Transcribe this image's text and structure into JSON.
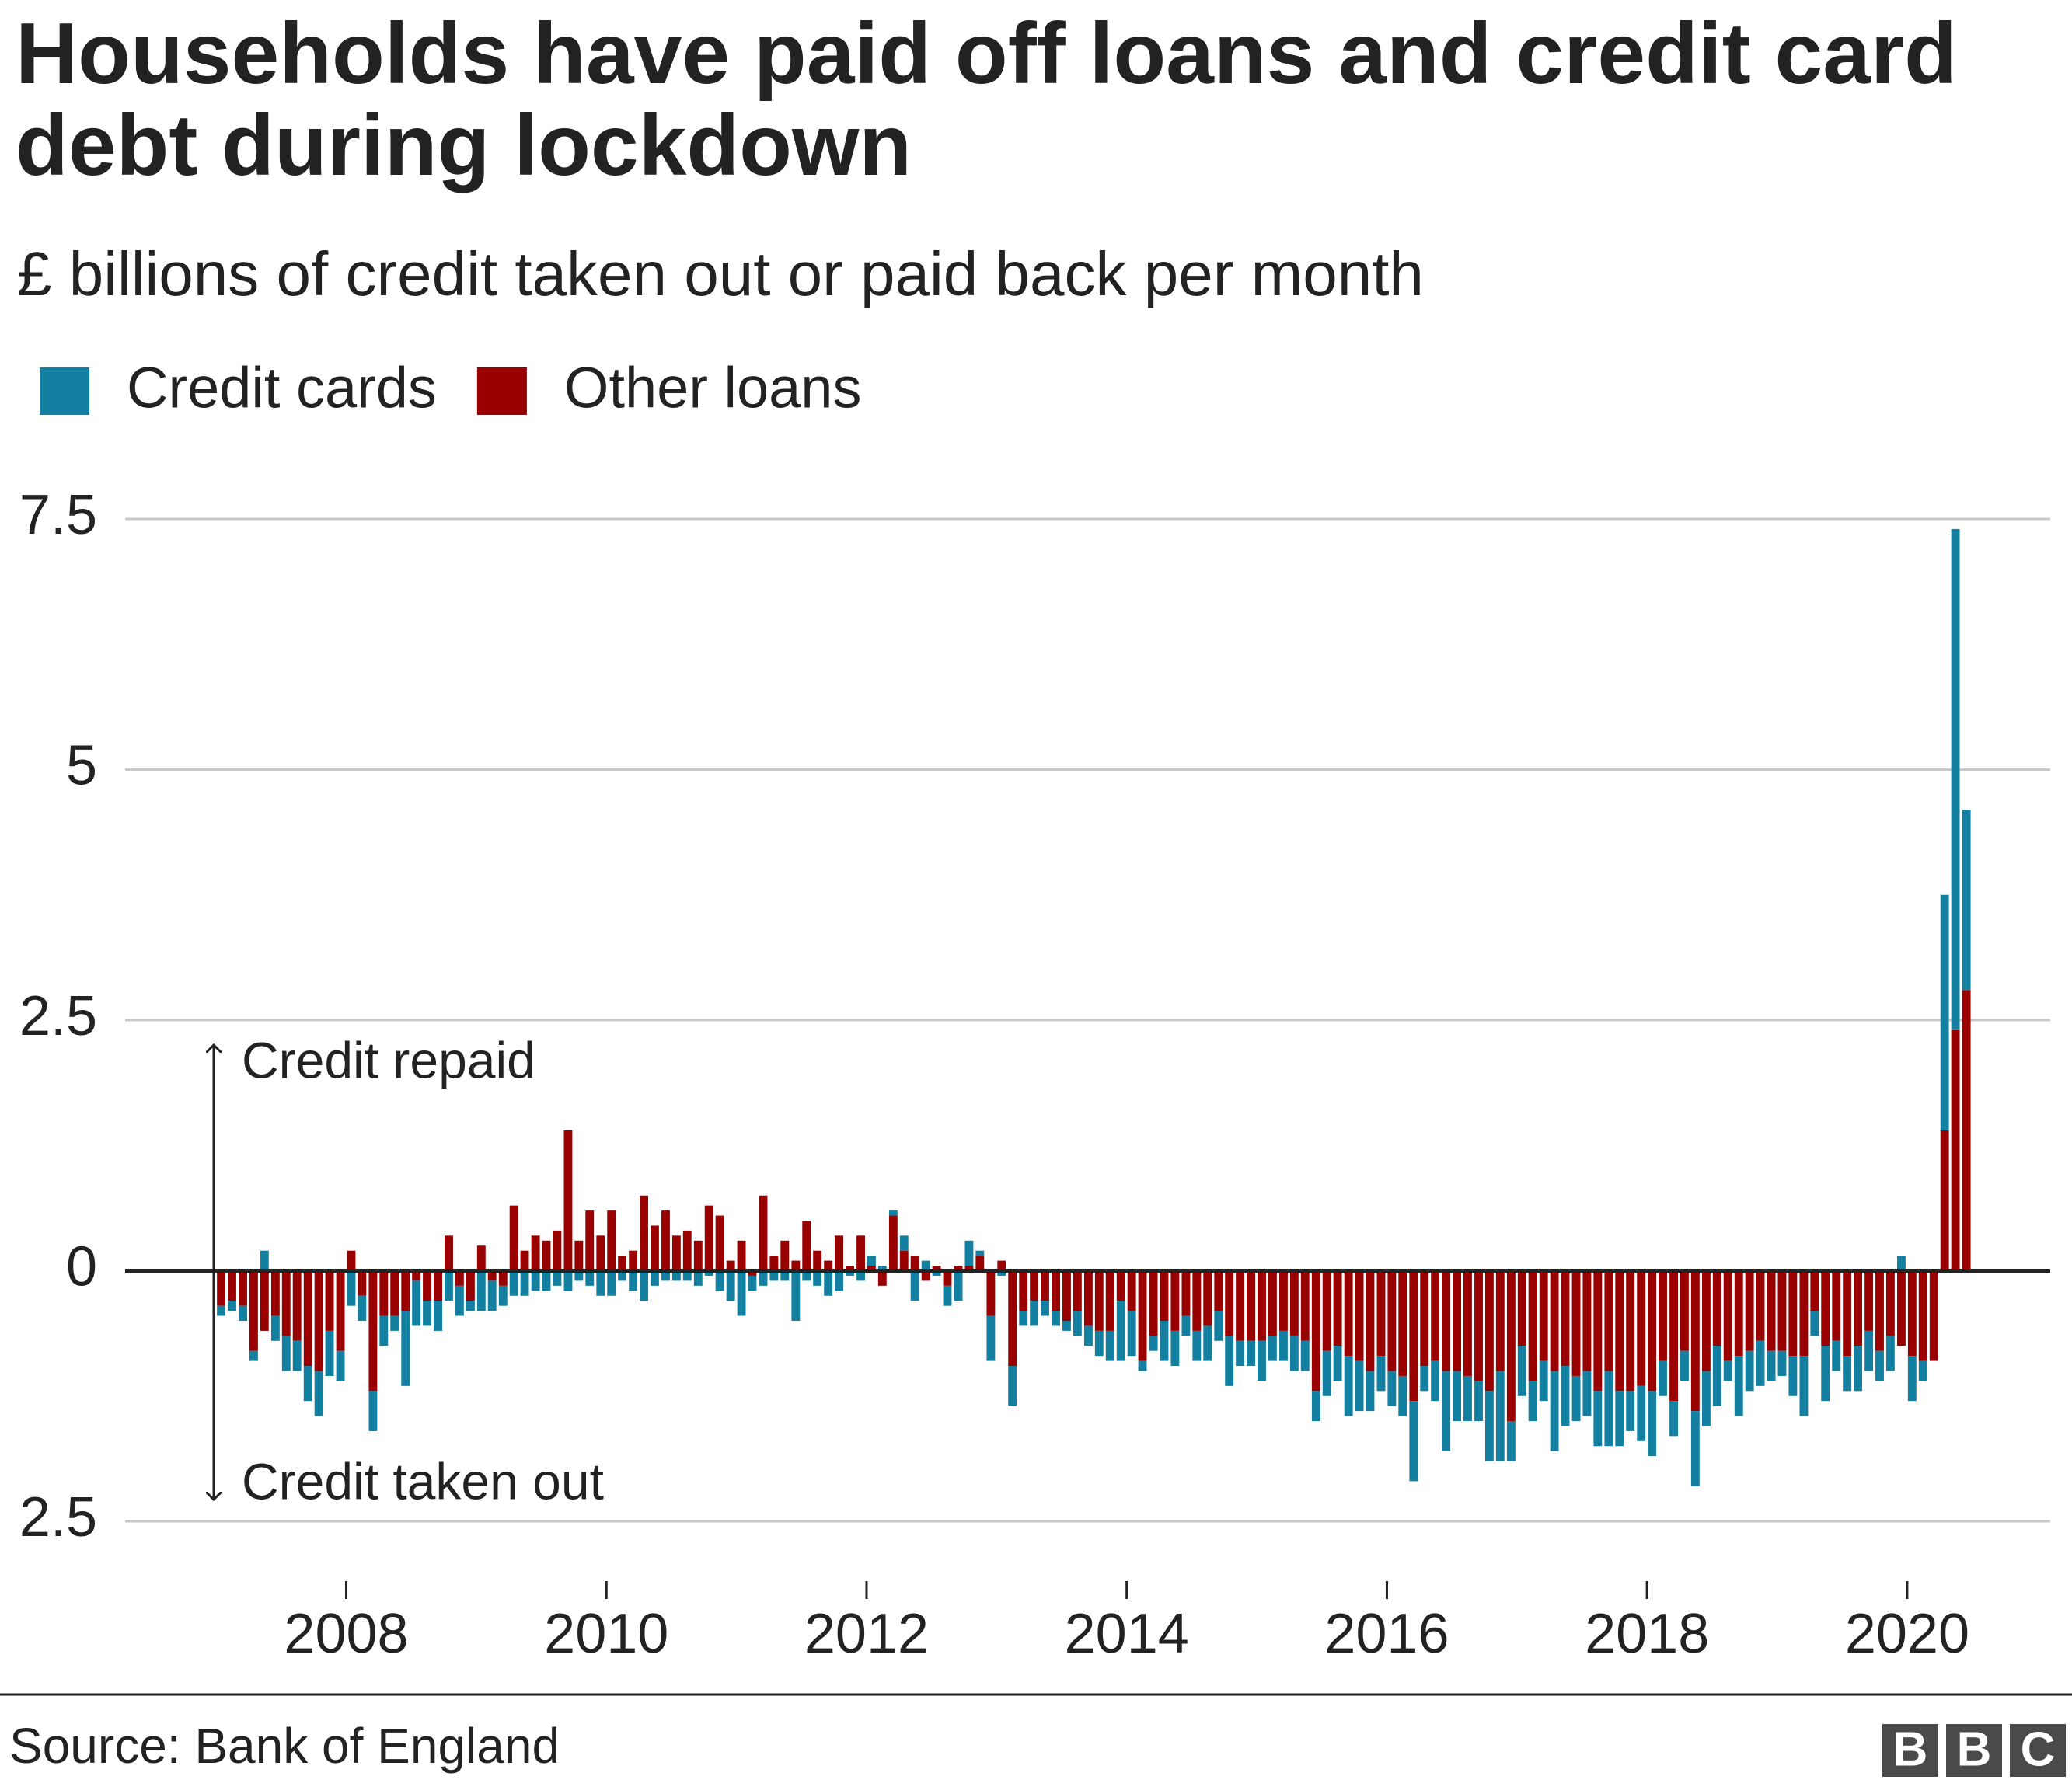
{
  "chart_data": {
    "type": "stacked-bar",
    "title": "Households have paid off loans and credit card debt during lockdown",
    "subtitle": "£ billions of credit taken out or paid back per month",
    "annotations": [
      "Credit repaid",
      "Credit taken out"
    ],
    "source": "Source: Bank of England",
    "logo": [
      "B",
      "B",
      "C"
    ],
    "xlim": [
      2006.3,
      2021.1
    ],
    "xticks": [
      2008,
      2010,
      2012,
      2014,
      2016,
      2018,
      2020
    ],
    "ylim": [
      -2.5,
      7.5
    ],
    "yticks": [
      {
        "value": -2.5,
        "label": "2.5"
      },
      0,
      2.5,
      5,
      7.5
    ],
    "grid": true,
    "x": [
      2007,
      2007.083,
      2007.167,
      2007.25,
      2007.333,
      2007.417,
      2007.5,
      2007.583,
      2007.667,
      2007.75,
      2007.833,
      2007.917,
      2008,
      2008.083,
      2008.167,
      2008.25,
      2008.333,
      2008.417,
      2008.5,
      2008.583,
      2008.667,
      2008.75,
      2008.833,
      2008.917,
      2009,
      2009.083,
      2009.167,
      2009.25,
      2009.333,
      2009.417,
      2009.5,
      2009.583,
      2009.667,
      2009.75,
      2009.833,
      2009.917,
      2010,
      2010.083,
      2010.167,
      2010.25,
      2010.333,
      2010.417,
      2010.5,
      2010.583,
      2010.667,
      2010.75,
      2010.833,
      2010.917,
      2011,
      2011.083,
      2011.167,
      2011.25,
      2011.333,
      2011.417,
      2011.5,
      2011.583,
      2011.667,
      2011.75,
      2011.833,
      2011.917,
      2012,
      2012.083,
      2012.167,
      2012.25,
      2012.333,
      2012.417,
      2012.5,
      2012.583,
      2012.667,
      2012.75,
      2012.833,
      2012.917,
      2013,
      2013.083,
      2013.167,
      2013.25,
      2013.333,
      2013.417,
      2013.5,
      2013.583,
      2013.667,
      2013.75,
      2013.833,
      2013.917,
      2014,
      2014.083,
      2014.167,
      2014.25,
      2014.333,
      2014.417,
      2014.5,
      2014.583,
      2014.667,
      2014.75,
      2014.833,
      2014.917,
      2015,
      2015.083,
      2015.167,
      2015.25,
      2015.333,
      2015.417,
      2015.5,
      2015.583,
      2015.667,
      2015.75,
      2015.833,
      2015.917,
      2016,
      2016.083,
      2016.167,
      2016.25,
      2016.333,
      2016.417,
      2016.5,
      2016.583,
      2016.667,
      2016.75,
      2016.833,
      2016.917,
      2017,
      2017.083,
      2017.167,
      2017.25,
      2017.333,
      2017.417,
      2017.5,
      2017.583,
      2017.667,
      2017.75,
      2017.833,
      2017.917,
      2018,
      2018.083,
      2018.167,
      2018.25,
      2018.333,
      2018.417,
      2018.5,
      2018.583,
      2018.667,
      2018.75,
      2018.833,
      2018.917,
      2019,
      2019.083,
      2019.167,
      2019.25,
      2019.333,
      2019.417,
      2019.5,
      2019.583,
      2019.667,
      2019.75,
      2019.833,
      2019.917,
      2020,
      2020.083,
      2020.167,
      2020.25,
      2020.333,
      2020.417
    ],
    "series": [
      {
        "name": "Other loans",
        "color": "#990000",
        "values": [
          -0.35,
          -0.3,
          -0.35,
          -0.8,
          -0.6,
          -0.45,
          -0.65,
          -0.7,
          -0.95,
          -1.0,
          -0.6,
          -0.8,
          0.2,
          -0.25,
          -1.2,
          -0.45,
          -0.45,
          -0.4,
          -0.1,
          -0.3,
          -0.3,
          0.35,
          -0.15,
          -0.3,
          0.25,
          -0.1,
          -0.15,
          0.65,
          0.2,
          0.35,
          0.3,
          0.4,
          1.4,
          0.3,
          0.6,
          0.35,
          0.6,
          0.15,
          0.2,
          0.75,
          0.45,
          0.6,
          0.35,
          0.4,
          0.3,
          0.65,
          0.55,
          0.1,
          0.3,
          -0.05,
          0.75,
          0.15,
          0.3,
          0.1,
          0.5,
          0.2,
          0.1,
          0.35,
          0.05,
          0.35,
          0.05,
          -0.15,
          0.55,
          0.2,
          0.15,
          -0.1,
          0.05,
          -0.15,
          0.05,
          0.05,
          0.15,
          -0.45,
          0.1,
          -0.95,
          -0.4,
          -0.3,
          -0.3,
          -0.4,
          -0.5,
          -0.4,
          -0.55,
          -0.6,
          -0.6,
          -0.3,
          -0.4,
          -0.9,
          -0.65,
          -0.5,
          -0.6,
          -0.45,
          -0.6,
          -0.55,
          -0.4,
          -0.65,
          -0.7,
          -0.7,
          -0.7,
          -0.65,
          -0.6,
          -0.65,
          -0.7,
          -1.2,
          -0.8,
          -0.75,
          -0.85,
          -0.9,
          -1.0,
          -0.85,
          -1.0,
          -1.05,
          -1.3,
          -0.95,
          -0.9,
          -1.0,
          -1.0,
          -1.05,
          -1.1,
          -1.2,
          -1.0,
          -1.5,
          -0.75,
          -1.1,
          -0.9,
          -1.0,
          -0.95,
          -1.05,
          -1.0,
          -1.2,
          -1.0,
          -1.2,
          -1.2,
          -1.15,
          -1.2,
          -0.9,
          -1.3,
          -0.8,
          -1.4,
          -1.0,
          -0.75,
          -0.9,
          -0.85,
          -0.8,
          -0.7,
          -0.8,
          -0.8,
          -0.85,
          -0.85,
          -0.4,
          -0.75,
          -0.7,
          -0.85,
          -0.75,
          -0.6,
          -0.8,
          -0.65,
          -0.75,
          -0.85,
          -0.9,
          -0.9,
          1.4,
          2.4,
          2.8
        ]
      },
      {
        "name": "Credit cards",
        "color": "#1380a1",
        "values": [
          -0.1,
          -0.1,
          -0.15,
          -0.1,
          0.2,
          -0.25,
          -0.35,
          -0.3,
          -0.35,
          -0.45,
          -0.45,
          -0.3,
          -0.35,
          -0.25,
          -0.4,
          -0.3,
          -0.15,
          -0.75,
          -0.45,
          -0.25,
          -0.3,
          -0.3,
          -0.3,
          -0.1,
          -0.4,
          -0.3,
          -0.2,
          -0.25,
          -0.25,
          -0.2,
          -0.2,
          -0.15,
          -0.2,
          -0.1,
          -0.15,
          -0.25,
          -0.25,
          -0.1,
          -0.2,
          -0.3,
          -0.15,
          -0.1,
          -0.1,
          -0.1,
          -0.15,
          -0.05,
          -0.2,
          -0.3,
          -0.45,
          -0.15,
          -0.15,
          -0.1,
          -0.1,
          -0.5,
          -0.1,
          -0.15,
          -0.25,
          -0.2,
          -0.05,
          -0.1,
          0.1,
          0.05,
          0.05,
          0.15,
          -0.3,
          0.1,
          -0.05,
          -0.2,
          -0.3,
          0.25,
          0.05,
          -0.45,
          -0.05,
          -0.4,
          -0.15,
          -0.25,
          -0.15,
          -0.15,
          -0.1,
          -0.25,
          -0.2,
          -0.25,
          -0.3,
          -0.6,
          -0.45,
          -0.1,
          -0.15,
          -0.4,
          -0.35,
          -0.2,
          -0.3,
          -0.35,
          -0.3,
          -0.5,
          -0.25,
          -0.25,
          -0.4,
          -0.25,
          -0.3,
          -0.35,
          -0.3,
          -0.3,
          -0.45,
          -0.35,
          -0.6,
          -0.5,
          -0.4,
          -0.35,
          -0.35,
          -0.4,
          -0.8,
          -0.25,
          -0.4,
          -0.8,
          -0.5,
          -0.45,
          -0.4,
          -0.7,
          -0.9,
          -0.4,
          -0.5,
          -0.4,
          -0.4,
          -0.8,
          -0.6,
          -0.45,
          -0.45,
          -0.55,
          -0.75,
          -0.55,
          -0.4,
          -0.55,
          -0.65,
          -0.35,
          -0.35,
          -0.3,
          -0.75,
          -0.55,
          -0.6,
          -0.2,
          -0.6,
          -0.4,
          -0.45,
          -0.3,
          -0.25,
          -0.4,
          -0.6,
          -0.25,
          -0.55,
          -0.3,
          -0.35,
          -0.45,
          -0.4,
          -0.3,
          -0.35,
          0.15,
          -0.45,
          -0.2,
          0,
          2.35,
          5.0,
          1.8
        ]
      }
    ]
  }
}
